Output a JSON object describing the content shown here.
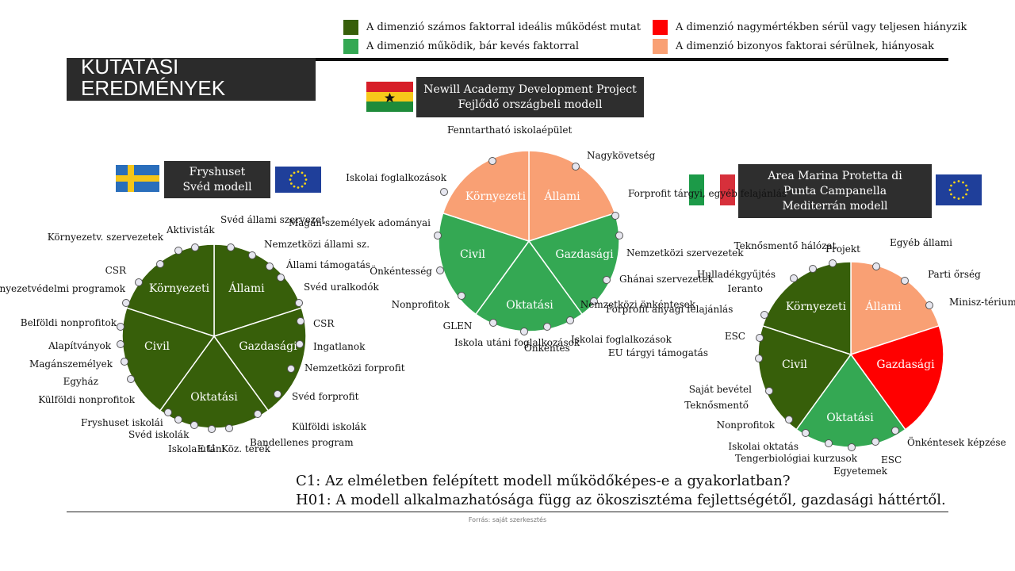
{
  "title": "KUTATÁSI EREDMÉNYEK",
  "legend": [
    {
      "label": "A dimenzió számos faktorral ideális működést mutat",
      "color": "#375f0a"
    },
    {
      "label": "A dimenzió működik, bár kevés faktorral",
      "color": "#34a853"
    },
    {
      "label": "A dimenzió nagymértékben sérül vagy teljesen hiányzik",
      "color": "#ff0000"
    },
    {
      "label": "A dimenzió bizonyos faktorai sérülnek, hiányosak",
      "color": "#f9a074"
    }
  ],
  "models": [
    {
      "id": "sweden",
      "name": "Fryshuset\nSvéd modell",
      "flags": [
        "sweden-flag",
        "eu-flag"
      ],
      "segments": [
        {
          "label": "Állami",
          "color": "#375f0a"
        },
        {
          "label": "Gazdasági",
          "color": "#375f0a"
        },
        {
          "label": "Oktatási",
          "color": "#375f0a"
        },
        {
          "label": "Civil",
          "color": "#375f0a"
        },
        {
          "label": "Környezeti",
          "color": "#375f0a"
        }
      ],
      "factors": [
        "Svéd állami szervezet",
        "Nemzetközi állami sz.",
        "Állami támogatás",
        "Svéd uralkodók",
        "CSR",
        "Ingatlanok",
        "Nemzetközi forprofit",
        "Svéd forprofit",
        "Külföldi iskolák",
        "Bandellenes program",
        "Köz. terek",
        "E U",
        "Iskola utáni",
        "Svéd iskolák",
        "Fryshuset iskolái",
        "Külföldi nonprofitok",
        "Egyház",
        "Magánszemélyek",
        "Alapítványok",
        "Belföldi nonprofitok",
        "Környezetvédelmi programok",
        "CSR",
        "Környezetv. szervezetek",
        "Aktivisták"
      ]
    },
    {
      "id": "ghana",
      "name": "Newill Academy Development Project\nFejlődő országbeli modell",
      "flags": [
        "ghana-flag"
      ],
      "segments": [
        {
          "label": "Állami",
          "color": "#f9a074"
        },
        {
          "label": "Gazdasági",
          "color": "#34a853"
        },
        {
          "label": "Oktatási",
          "color": "#34a853"
        },
        {
          "label": "Civil",
          "color": "#34a853"
        },
        {
          "label": "Környezeti",
          "color": "#f9a074"
        }
      ],
      "factors": [
        "Nagykövetség",
        "Forprofit tárgyi, egyéb felajánlás",
        "Nemzetközi szervezetek",
        "Ghánai szervezetek",
        "Forprofit anyagi felajánlás",
        "Iskolai foglalkozások",
        "Önkéntes",
        "Iskola utáni foglalkozások",
        "GLEN",
        "Nonprofitok",
        "Önkéntesség",
        "Magán-személyek adományai",
        "Iskolai foglalkozások",
        "Fenntartható iskolaépület"
      ]
    },
    {
      "id": "italy",
      "name": "Area Marina Protetta di\nPunta Campanella\nMediterrán modell",
      "flags": [
        "italy-flag",
        "eu-flag"
      ],
      "segments": [
        {
          "label": "Állami",
          "color": "#f9a074"
        },
        {
          "label": "Gazdasági",
          "color": "#ff0000"
        },
        {
          "label": "Oktatási",
          "color": "#34a853"
        },
        {
          "label": "Civil",
          "color": "#375f0a"
        },
        {
          "label": "Környezeti",
          "color": "#375f0a"
        }
      ],
      "factors": [
        "Egyéb állami",
        "Parti őrség",
        "Minisz-térium",
        "Önkéntesek képzése",
        "ESC",
        "Egyetemek",
        "Tengerbiológiai kurzusok",
        "Iskolai oktatás",
        "Nonprofitok",
        "Teknősmentő",
        "Saját bevétel",
        "EU tárgyi támogatás",
        "ESC",
        "Nemzetközi önkéntesek",
        "Ieranto",
        "Hulladékgyűjtés",
        "Teknősmentő hálózat",
        "Projekt"
      ]
    }
  ],
  "questions": {
    "c1": "C1: Az elméletben felépített modell működőképes-e a gyakorlatban?",
    "h01": "H01: A modell alkalmazhatósága függ az ökoszisztéma fejlettségétől, gazdasági háttértől."
  },
  "source": "Forrás: saját szerkesztés"
}
